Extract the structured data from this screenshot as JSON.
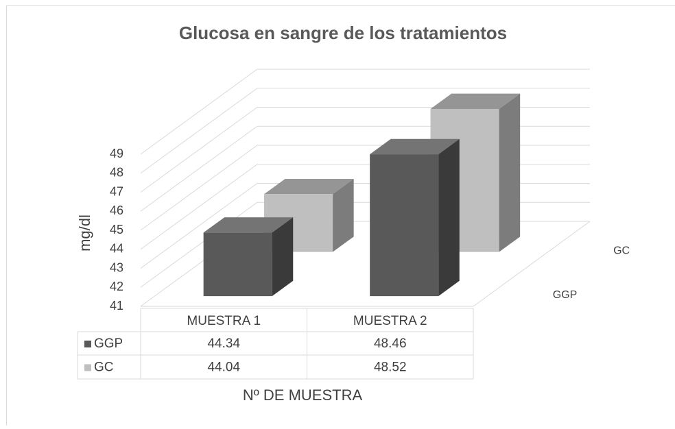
{
  "chart_data": {
    "type": "bar3d",
    "title": "Glucosa en sangre de los tratamientos",
    "y_label": "mg/dl",
    "x_label": "Nº DE MUESTRA",
    "categories": [
      "MUESTRA 1",
      "MUESTRA 2"
    ],
    "series": [
      {
        "name": "GGP",
        "color": "#595959",
        "values": [
          44.34,
          48.46
        ]
      },
      {
        "name": "GC",
        "color": "#bfbfbf",
        "values": [
          44.04,
          48.52
        ]
      }
    ],
    "ylim": [
      41,
      49
    ],
    "yticks": [
      41,
      42,
      43,
      44,
      45,
      46,
      47,
      48,
      49
    ],
    "grid": true,
    "data_table": true
  }
}
